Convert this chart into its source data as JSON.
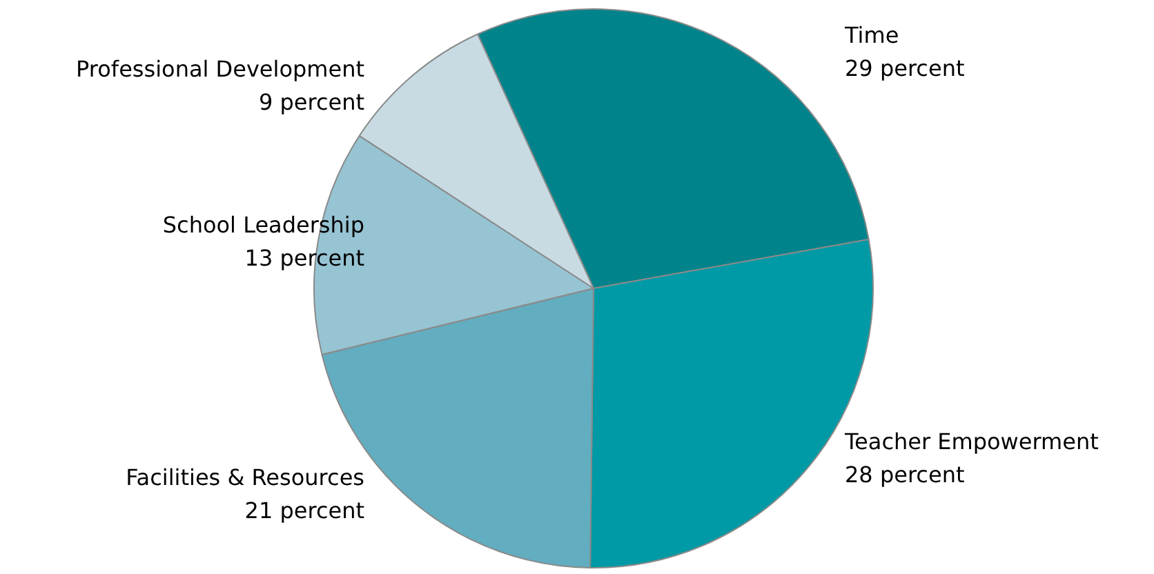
{
  "chart_data": {
    "type": "pie",
    "categories": [
      "Time",
      "Teacher Empowerment",
      "Facilities & Resources",
      "School Leadership",
      "Professional Development"
    ],
    "values": [
      29,
      28,
      21,
      13,
      9
    ],
    "value_labels": [
      "29 percent",
      "28 percent",
      "21 percent",
      "13 percent",
      "9 percent"
    ],
    "colors": [
      "#00838a",
      "#009aa6",
      "#62adc0",
      "#96c4d3",
      "#c8dbe3"
    ],
    "legend": false
  }
}
